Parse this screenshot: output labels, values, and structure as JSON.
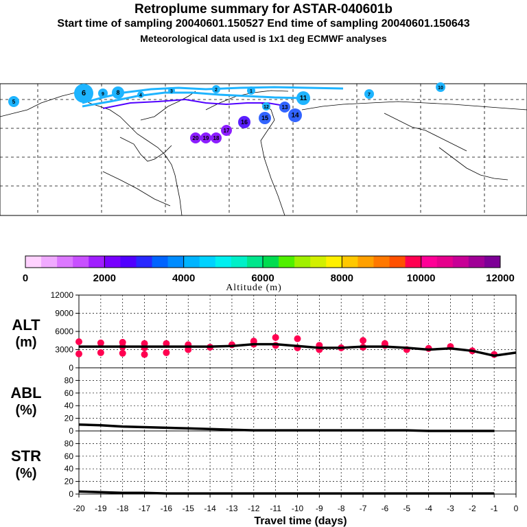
{
  "header": {
    "title": "Retroplume summary for ASTAR-040601b",
    "subtitle_times": "Start time of sampling 20040601.150527     End time of sampling 20040601.150643",
    "subtitle_met": "Meteorological data used is 1x1 deg ECMWF analyses"
  },
  "map": {
    "track_color": "#1eb4ff",
    "markers": [
      {
        "label": "6",
        "color": "#1eb4ff"
      },
      {
        "label": "8",
        "color": "#1eb4ff"
      },
      {
        "label": "9",
        "color": "#1eb4ff"
      },
      {
        "label": "4",
        "color": "#1eb4ff"
      },
      {
        "label": "3",
        "color": "#1eb4ff"
      },
      {
        "label": "2",
        "color": "#1eb4ff"
      },
      {
        "label": "1",
        "color": "#1eb4ff"
      },
      {
        "label": "7",
        "color": "#1eb4ff"
      },
      {
        "label": "11",
        "color": "#1eb4ff"
      },
      {
        "label": "12",
        "color": "#1eb4ff"
      },
      {
        "label": "13",
        "color": "#3264ff"
      },
      {
        "label": "14",
        "color": "#3264ff"
      },
      {
        "label": "15",
        "color": "#3264ff"
      },
      {
        "label": "16",
        "color": "#5a1eff"
      },
      {
        "label": "17",
        "color": "#8c1eff"
      },
      {
        "label": "18",
        "color": "#8c1eff"
      },
      {
        "label": "19",
        "color": "#8c1eff"
      },
      {
        "label": "20",
        "color": "#8c1eff"
      },
      {
        "label": "5",
        "color": "#1eb4ff"
      },
      {
        "label": "10",
        "color": "#1eb4ff"
      }
    ]
  },
  "colorbar": {
    "colors": [
      "#ffd2ff",
      "#f0aaff",
      "#dc78ff",
      "#c850ff",
      "#a01eff",
      "#7800ff",
      "#5000ff",
      "#2828ff",
      "#0064ff",
      "#008cff",
      "#00b4ff",
      "#00d2ff",
      "#00f0f0",
      "#00f0c8",
      "#00e68c",
      "#00dc50",
      "#50f000",
      "#a0f000",
      "#d2f000",
      "#fff000",
      "#ffc800",
      "#ffa000",
      "#ff7800",
      "#ff5000",
      "#ff0050",
      "#ff0096",
      "#e6008c",
      "#c80096",
      "#a00096",
      "#7d0096"
    ],
    "tick_labels": [
      "0",
      "2000",
      "4000",
      "6000",
      "8000",
      "10000",
      "12000"
    ],
    "label": "Altitude (m)"
  },
  "chart_data": [
    {
      "type": "line",
      "name": "ALT",
      "ylabel_line1": "ALT",
      "ylabel_line2": "(m)",
      "ylim": [
        0,
        12000
      ],
      "y_ticks": [
        "12000",
        "9000",
        "6000",
        "3000",
        "0"
      ],
      "x": [
        -20,
        -19,
        -18,
        -17,
        -16,
        -15,
        -14,
        -13,
        -12,
        -11,
        -10,
        -9,
        -8,
        -7,
        -6,
        -5,
        -4,
        -3,
        -2,
        -1,
        0
      ],
      "mean_line": [
        3500,
        3500,
        3500,
        3500,
        3500,
        3500,
        3500,
        3600,
        3900,
        3900,
        3600,
        3300,
        3300,
        3500,
        3500,
        3300,
        3000,
        3200,
        2800,
        2000,
        2500
      ],
      "line_color": "#000000",
      "points": {
        "color": "#ff0050",
        "x": [
          -20,
          -20,
          -19,
          -19,
          -18,
          -18,
          -18,
          -17,
          -17,
          -17,
          -16,
          -16,
          -15,
          -15,
          -14,
          -13,
          -12,
          -12,
          -11,
          -11,
          -10,
          -10,
          -9,
          -9,
          -8,
          -7,
          -7,
          -6,
          -6,
          -5,
          -4,
          -3,
          -2,
          -1
        ],
        "y": [
          4300,
          2300,
          4100,
          2500,
          4200,
          3500,
          2400,
          4000,
          3300,
          2200,
          4000,
          2500,
          3800,
          3000,
          3400,
          3800,
          4400,
          3900,
          5000,
          3700,
          4800,
          3300,
          3700,
          3000,
          3300,
          4500,
          3400,
          3700,
          4000,
          3000,
          3200,
          3500,
          2800,
          2200
        ]
      }
    },
    {
      "type": "line",
      "name": "ABL",
      "ylabel_line1": "ABL",
      "ylabel_line2": "(%)",
      "ylim": [
        0,
        100
      ],
      "y_ticks": [
        "80",
        "60",
        "40",
        "20",
        "0"
      ],
      "x": [
        -20,
        -19,
        -18,
        -17,
        -16,
        -15,
        -14,
        -13,
        -12,
        -11,
        -10,
        -9,
        -8,
        -7,
        -6,
        -5,
        -4,
        -3,
        -2,
        -1
      ],
      "values": [
        10,
        9,
        7,
        6,
        5,
        4,
        3,
        2,
        1,
        1,
        1,
        1,
        1,
        1,
        1,
        1,
        0,
        0,
        0,
        0
      ],
      "line_color": "#000000"
    },
    {
      "type": "line",
      "name": "STR",
      "ylabel_line1": "STR",
      "ylabel_line2": "(%)",
      "ylim": [
        0,
        100
      ],
      "y_ticks": [
        "80",
        "60",
        "40",
        "20",
        "0"
      ],
      "x": [
        -20,
        -19,
        -18,
        -17,
        -16,
        -15,
        -14,
        -13,
        -12,
        -11,
        -10,
        -9,
        -8,
        -7,
        -6,
        -5,
        -4,
        -3,
        -2,
        -1
      ],
      "values": [
        4,
        3,
        2,
        2,
        1,
        1,
        1,
        1,
        1,
        1,
        1,
        1,
        1,
        1,
        1,
        1,
        1,
        1,
        1,
        1
      ],
      "line_color": "#000000"
    }
  ],
  "x_axis": {
    "tick_labels": [
      "-20",
      "-19",
      "-18",
      "-17",
      "-16",
      "-15",
      "-14",
      "-13",
      "-12",
      "-11",
      "-10",
      "-9",
      "-8",
      "-7",
      "-6",
      "-5",
      "-4",
      "-3",
      "-2",
      "-1",
      "0"
    ],
    "label": "Travel time (days)"
  }
}
